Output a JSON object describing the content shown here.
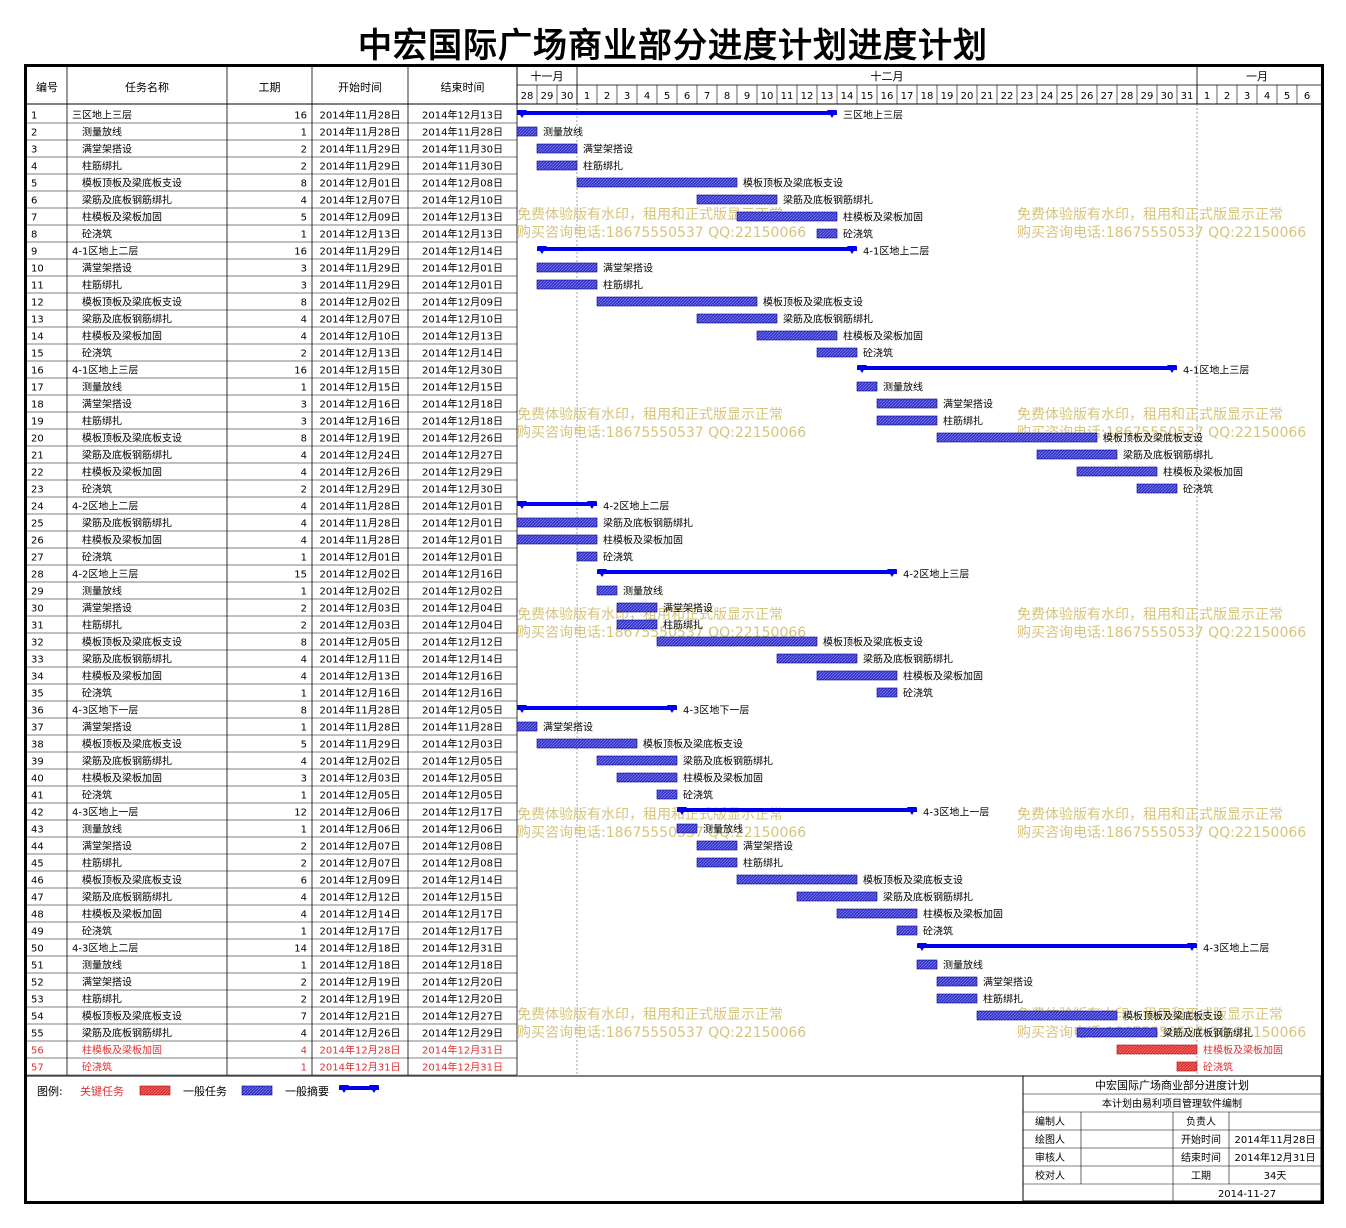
{
  "title": "中宏国际广场商业部分进度计划进度计划",
  "table_headers": [
    "编号",
    "任务名称",
    "工期",
    "开始时间",
    "结束时间"
  ],
  "timeline": {
    "months": [
      {
        "label": "十一月",
        "days": [
          "28",
          "29",
          "30"
        ]
      },
      {
        "label": "十二月",
        "days": [
          "1",
          "2",
          "3",
          "4",
          "5",
          "6",
          "7",
          "8",
          "9",
          "10",
          "11",
          "12",
          "13",
          "14",
          "15",
          "16",
          "17",
          "18",
          "19",
          "20",
          "21",
          "22",
          "23",
          "24",
          "25",
          "26",
          "27",
          "28",
          "29",
          "30",
          "31"
        ]
      },
      {
        "label": "一月",
        "days": [
          "1",
          "2",
          "3",
          "4",
          "5",
          "6"
        ]
      }
    ]
  },
  "colors": {
    "critical": "#e03030",
    "normal_task": "#3333cc",
    "summary": "#0000ee",
    "watermark": "#d6c47a"
  },
  "chart_data": {
    "type": "gantt",
    "tasks": [
      {
        "id": "1",
        "name": "三区地上三层",
        "summary": true,
        "critical": false,
        "duration": 16,
        "start": "2014年11月28日",
        "end": "2014年12月13日",
        "s": 0,
        "e": 15
      },
      {
        "id": "2",
        "name": "测量放线",
        "summary": false,
        "critical": false,
        "duration": 1,
        "start": "2014年11月28日",
        "end": "2014年11月28日",
        "s": 0,
        "e": 0
      },
      {
        "id": "3",
        "name": "满堂架搭设",
        "summary": false,
        "critical": false,
        "duration": 2,
        "start": "2014年11月29日",
        "end": "2014年11月30日",
        "s": 1,
        "e": 2
      },
      {
        "id": "4",
        "name": "柱筋绑扎",
        "summary": false,
        "critical": false,
        "duration": 2,
        "start": "2014年11月29日",
        "end": "2014年11月30日",
        "s": 1,
        "e": 2
      },
      {
        "id": "5",
        "name": "模板顶板及梁底板支设",
        "summary": false,
        "critical": false,
        "duration": 8,
        "start": "2014年12月01日",
        "end": "2014年12月08日",
        "s": 3,
        "e": 10
      },
      {
        "id": "6",
        "name": "梁筋及底板钢筋绑扎",
        "summary": false,
        "critical": false,
        "duration": 4,
        "start": "2014年12月07日",
        "end": "2014年12月10日",
        "s": 9,
        "e": 12
      },
      {
        "id": "7",
        "name": "柱模板及梁板加固",
        "summary": false,
        "critical": false,
        "duration": 5,
        "start": "2014年12月09日",
        "end": "2014年12月13日",
        "s": 11,
        "e": 15
      },
      {
        "id": "8",
        "name": "砼浇筑",
        "summary": false,
        "critical": false,
        "duration": 1,
        "start": "2014年12月13日",
        "end": "2014年12月13日",
        "s": 15,
        "e": 15
      },
      {
        "id": "9",
        "name": "4-1区地上二层",
        "summary": true,
        "critical": false,
        "duration": 16,
        "start": "2014年11月29日",
        "end": "2014年12月14日",
        "s": 1,
        "e": 16
      },
      {
        "id": "10",
        "name": "满堂架搭设",
        "summary": false,
        "critical": false,
        "duration": 3,
        "start": "2014年11月29日",
        "end": "2014年12月01日",
        "s": 1,
        "e": 3
      },
      {
        "id": "11",
        "name": "柱筋绑扎",
        "summary": false,
        "critical": false,
        "duration": 3,
        "start": "2014年11月29日",
        "end": "2014年12月01日",
        "s": 1,
        "e": 3
      },
      {
        "id": "12",
        "name": "模板顶板及梁底板支设",
        "summary": false,
        "critical": false,
        "duration": 8,
        "start": "2014年12月02日",
        "end": "2014年12月09日",
        "s": 4,
        "e": 11
      },
      {
        "id": "13",
        "name": "梁筋及底板钢筋绑扎",
        "summary": false,
        "critical": false,
        "duration": 4,
        "start": "2014年12月07日",
        "end": "2014年12月10日",
        "s": 9,
        "e": 12
      },
      {
        "id": "14",
        "name": "柱模板及梁板加固",
        "summary": false,
        "critical": false,
        "duration": 4,
        "start": "2014年12月10日",
        "end": "2014年12月13日",
        "s": 12,
        "e": 15
      },
      {
        "id": "15",
        "name": "砼浇筑",
        "summary": false,
        "critical": false,
        "duration": 2,
        "start": "2014年12月13日",
        "end": "2014年12月14日",
        "s": 15,
        "e": 16
      },
      {
        "id": "16",
        "name": "4-1区地上三层",
        "summary": true,
        "critical": false,
        "duration": 16,
        "start": "2014年12月15日",
        "end": "2014年12月30日",
        "s": 17,
        "e": 32
      },
      {
        "id": "17",
        "name": "测量放线",
        "summary": false,
        "critical": false,
        "duration": 1,
        "start": "2014年12月15日",
        "end": "2014年12月15日",
        "s": 17,
        "e": 17
      },
      {
        "id": "18",
        "name": "满堂架搭设",
        "summary": false,
        "critical": false,
        "duration": 3,
        "start": "2014年12月16日",
        "end": "2014年12月18日",
        "s": 18,
        "e": 20
      },
      {
        "id": "19",
        "name": "柱筋绑扎",
        "summary": false,
        "critical": false,
        "duration": 3,
        "start": "2014年12月16日",
        "end": "2014年12月18日",
        "s": 18,
        "e": 20
      },
      {
        "id": "20",
        "name": "模板顶板及梁底板支设",
        "summary": false,
        "critical": false,
        "duration": 8,
        "start": "2014年12月19日",
        "end": "2014年12月26日",
        "s": 21,
        "e": 28
      },
      {
        "id": "21",
        "name": "梁筋及底板钢筋绑扎",
        "summary": false,
        "critical": false,
        "duration": 4,
        "start": "2014年12月24日",
        "end": "2014年12月27日",
        "s": 26,
        "e": 29
      },
      {
        "id": "22",
        "name": "柱模板及梁板加固",
        "summary": false,
        "critical": false,
        "duration": 4,
        "start": "2014年12月26日",
        "end": "2014年12月29日",
        "s": 28,
        "e": 31
      },
      {
        "id": "23",
        "name": "砼浇筑",
        "summary": false,
        "critical": false,
        "duration": 2,
        "start": "2014年12月29日",
        "end": "2014年12月30日",
        "s": 31,
        "e": 32
      },
      {
        "id": "24",
        "name": "4-2区地上二层",
        "summary": true,
        "critical": false,
        "duration": 4,
        "start": "2014年11月28日",
        "end": "2014年12月01日",
        "s": 0,
        "e": 3
      },
      {
        "id": "25",
        "name": "梁筋及底板钢筋绑扎",
        "summary": false,
        "critical": false,
        "duration": 4,
        "start": "2014年11月28日",
        "end": "2014年12月01日",
        "s": 0,
        "e": 3
      },
      {
        "id": "26",
        "name": "柱模板及梁板加固",
        "summary": false,
        "critical": false,
        "duration": 4,
        "start": "2014年11月28日",
        "end": "2014年12月01日",
        "s": 0,
        "e": 3
      },
      {
        "id": "27",
        "name": "砼浇筑",
        "summary": false,
        "critical": false,
        "duration": 1,
        "start": "2014年12月01日",
        "end": "2014年12月01日",
        "s": 3,
        "e": 3
      },
      {
        "id": "28",
        "name": "4-2区地上三层",
        "summary": true,
        "critical": false,
        "duration": 15,
        "start": "2014年12月02日",
        "end": "2014年12月16日",
        "s": 4,
        "e": 18
      },
      {
        "id": "29",
        "name": "测量放线",
        "summary": false,
        "critical": false,
        "duration": 1,
        "start": "2014年12月02日",
        "end": "2014年12月02日",
        "s": 4,
        "e": 4
      },
      {
        "id": "30",
        "name": "满堂架搭设",
        "summary": false,
        "critical": false,
        "duration": 2,
        "start": "2014年12月03日",
        "end": "2014年12月04日",
        "s": 5,
        "e": 6
      },
      {
        "id": "31",
        "name": "柱筋绑扎",
        "summary": false,
        "critical": false,
        "duration": 2,
        "start": "2014年12月03日",
        "end": "2014年12月04日",
        "s": 5,
        "e": 6
      },
      {
        "id": "32",
        "name": "模板顶板及梁底板支设",
        "summary": false,
        "critical": false,
        "duration": 8,
        "start": "2014年12月05日",
        "end": "2014年12月12日",
        "s": 7,
        "e": 14
      },
      {
        "id": "33",
        "name": "梁筋及底板钢筋绑扎",
        "summary": false,
        "critical": false,
        "duration": 4,
        "start": "2014年12月11日",
        "end": "2014年12月14日",
        "s": 13,
        "e": 16
      },
      {
        "id": "34",
        "name": "柱模板及梁板加固",
        "summary": false,
        "critical": false,
        "duration": 4,
        "start": "2014年12月13日",
        "end": "2014年12月16日",
        "s": 15,
        "e": 18
      },
      {
        "id": "35",
        "name": "砼浇筑",
        "summary": false,
        "critical": false,
        "duration": 1,
        "start": "2014年12月16日",
        "end": "2014年12月16日",
        "s": 18,
        "e": 18
      },
      {
        "id": "36",
        "name": "4-3区地下一层",
        "summary": true,
        "critical": false,
        "duration": 8,
        "start": "2014年11月28日",
        "end": "2014年12月05日",
        "s": 0,
        "e": 7
      },
      {
        "id": "37",
        "name": "满堂架搭设",
        "summary": false,
        "critical": false,
        "duration": 1,
        "start": "2014年11月28日",
        "end": "2014年11月28日",
        "s": 0,
        "e": 0
      },
      {
        "id": "38",
        "name": "模板顶板及梁底板支设",
        "summary": false,
        "critical": false,
        "duration": 5,
        "start": "2014年11月29日",
        "end": "2014年12月03日",
        "s": 1,
        "e": 5
      },
      {
        "id": "39",
        "name": "梁筋及底板钢筋绑扎",
        "summary": false,
        "critical": false,
        "duration": 4,
        "start": "2014年12月02日",
        "end": "2014年12月05日",
        "s": 4,
        "e": 7
      },
      {
        "id": "40",
        "name": "柱模板及梁板加固",
        "summary": false,
        "critical": false,
        "duration": 3,
        "start": "2014年12月03日",
        "end": "2014年12月05日",
        "s": 5,
        "e": 7
      },
      {
        "id": "41",
        "name": "砼浇筑",
        "summary": false,
        "critical": false,
        "duration": 1,
        "start": "2014年12月05日",
        "end": "2014年12月05日",
        "s": 7,
        "e": 7
      },
      {
        "id": "42",
        "name": "4-3区地上一层",
        "summary": true,
        "critical": false,
        "duration": 12,
        "start": "2014年12月06日",
        "end": "2014年12月17日",
        "s": 8,
        "e": 19
      },
      {
        "id": "43",
        "name": "测量放线",
        "summary": false,
        "critical": false,
        "duration": 1,
        "start": "2014年12月06日",
        "end": "2014年12月06日",
        "s": 8,
        "e": 8
      },
      {
        "id": "44",
        "name": "满堂架搭设",
        "summary": false,
        "critical": false,
        "duration": 2,
        "start": "2014年12月07日",
        "end": "2014年12月08日",
        "s": 9,
        "e": 10
      },
      {
        "id": "45",
        "name": "柱筋绑扎",
        "summary": false,
        "critical": false,
        "duration": 2,
        "start": "2014年12月07日",
        "end": "2014年12月08日",
        "s": 9,
        "e": 10
      },
      {
        "id": "46",
        "name": "模板顶板及梁底板支设",
        "summary": false,
        "critical": false,
        "duration": 6,
        "start": "2014年12月09日",
        "end": "2014年12月14日",
        "s": 11,
        "e": 16
      },
      {
        "id": "47",
        "name": "梁筋及底板钢筋绑扎",
        "summary": false,
        "critical": false,
        "duration": 4,
        "start": "2014年12月12日",
        "end": "2014年12月15日",
        "s": 14,
        "e": 17
      },
      {
        "id": "48",
        "name": "柱模板及梁板加固",
        "summary": false,
        "critical": false,
        "duration": 4,
        "start": "2014年12月14日",
        "end": "2014年12月17日",
        "s": 16,
        "e": 19
      },
      {
        "id": "49",
        "name": "砼浇筑",
        "summary": false,
        "critical": false,
        "duration": 1,
        "start": "2014年12月17日",
        "end": "2014年12月17日",
        "s": 19,
        "e": 19
      },
      {
        "id": "50",
        "name": "4-3区地上二层",
        "summary": true,
        "critical": false,
        "duration": 14,
        "start": "2014年12月18日",
        "end": "2014年12月31日",
        "s": 20,
        "e": 33
      },
      {
        "id": "51",
        "name": "测量放线",
        "summary": false,
        "critical": false,
        "duration": 1,
        "start": "2014年12月18日",
        "end": "2014年12月18日",
        "s": 20,
        "e": 20
      },
      {
        "id": "52",
        "name": "满堂架搭设",
        "summary": false,
        "critical": false,
        "duration": 2,
        "start": "2014年12月19日",
        "end": "2014年12月20日",
        "s": 21,
        "e": 22
      },
      {
        "id": "53",
        "name": "柱筋绑扎",
        "summary": false,
        "critical": false,
        "duration": 2,
        "start": "2014年12月19日",
        "end": "2014年12月20日",
        "s": 21,
        "e": 22
      },
      {
        "id": "54",
        "name": "模板顶板及梁底板支设",
        "summary": false,
        "critical": false,
        "duration": 7,
        "start": "2014年12月21日",
        "end": "2014年12月27日",
        "s": 23,
        "e": 29
      },
      {
        "id": "55",
        "name": "梁筋及底板钢筋绑扎",
        "summary": false,
        "critical": false,
        "duration": 4,
        "start": "2014年12月26日",
        "end": "2014年12月29日",
        "s": 28,
        "e": 31
      },
      {
        "id": "56",
        "name": "柱模板及梁板加固",
        "summary": false,
        "critical": true,
        "duration": 4,
        "start": "2014年12月28日",
        "end": "2014年12月31日",
        "s": 30,
        "e": 33
      },
      {
        "id": "57",
        "name": "砼浇筑",
        "summary": false,
        "critical": true,
        "duration": 1,
        "start": "2014年12月31日",
        "end": "2014年12月31日",
        "s": 33,
        "e": 33
      }
    ]
  },
  "legend": {
    "label": "图例:",
    "critical": "关键任务",
    "normal": "一般任务",
    "summary": "一般摘要"
  },
  "info_box": {
    "title": "中宏国际广场商业部分进度计划",
    "subtitle": "本计划由易利项目管理软件编制",
    "rows": [
      {
        "k1": "编制人",
        "v1": "",
        "k2": "负责人",
        "v2": ""
      },
      {
        "k1": "绘图人",
        "v1": "",
        "k2": "开始时间",
        "v2": "2014年11月28日"
      },
      {
        "k1": "审核人",
        "v1": "",
        "k2": "结束时间",
        "v2": "2014年12月31日"
      },
      {
        "k1": "校对人",
        "v1": "",
        "k2": "工期",
        "v2": "34天"
      }
    ],
    "date": "2014-11-27"
  },
  "watermark": {
    "line1": "免费体验版有水印，租用和正式版显示正常",
    "line2": "购买咨询电话:18675550537 QQ:22150066"
  }
}
